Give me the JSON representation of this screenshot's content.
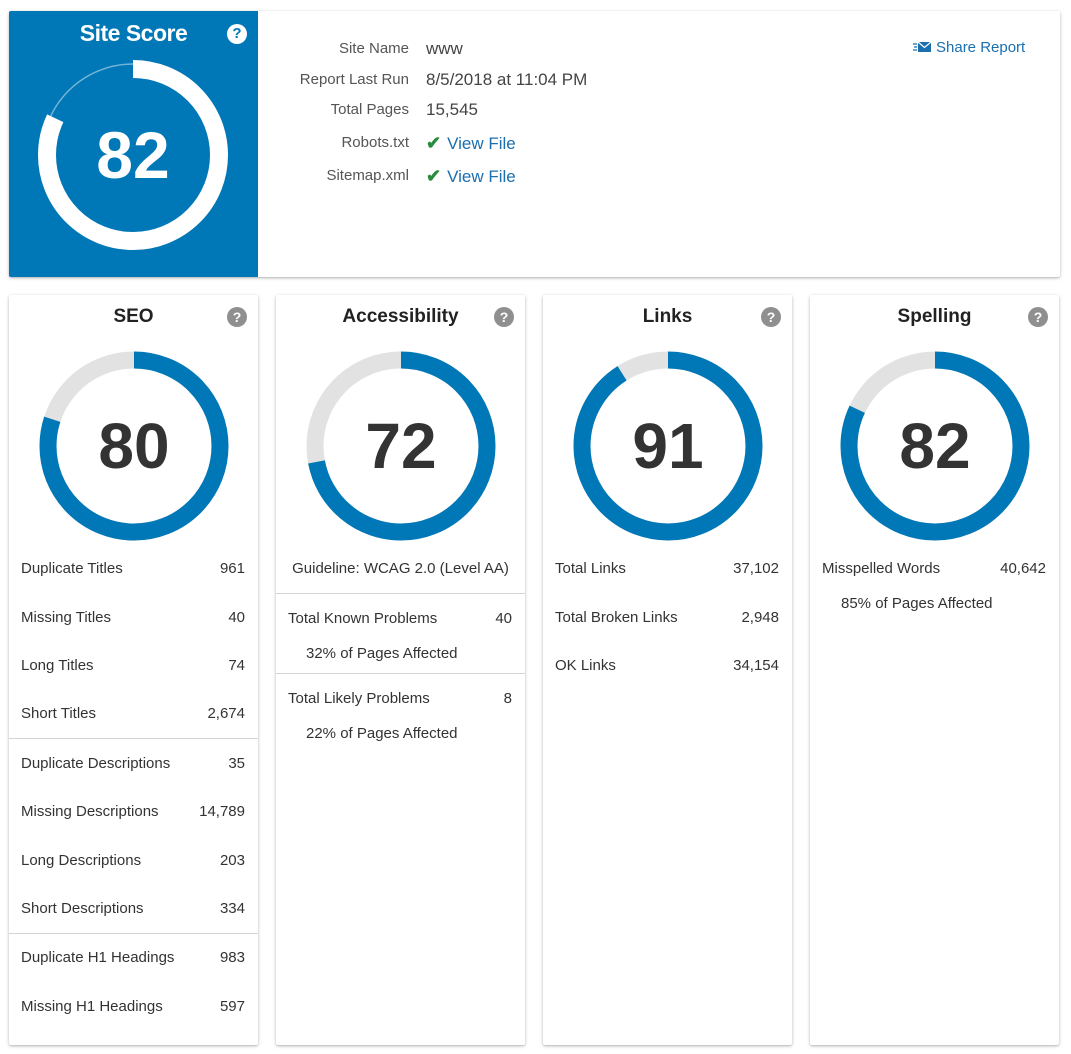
{
  "site_score": {
    "title": "Site Score",
    "help": "?",
    "value": "82",
    "score_fraction": 0.82
  },
  "info": {
    "site_name_label": "Site Name",
    "site_name_value": "www",
    "report_last_run_label": "Report Last Run",
    "report_last_run_value": "8/5/2018 at 11:04 PM",
    "total_pages_label": "Total Pages",
    "total_pages_value": "15,545",
    "robots_label": "Robots.txt",
    "robots_link": "View File",
    "sitemap_label": "Sitemap.xml",
    "sitemap_link": "View File",
    "check_glyph": "✔"
  },
  "share": {
    "label": "Share Report",
    "icon": "envelope-icon"
  },
  "colors": {
    "brand_blue": "#0077b6",
    "link_blue": "#1a6fae",
    "check_green": "#2a8a3e",
    "ring_gray": "#e2e2e2"
  },
  "cards": {
    "seo": {
      "title": "SEO",
      "help": "?",
      "score": "80",
      "score_fraction": 0.8,
      "rows": [
        {
          "label": "Duplicate Titles",
          "value": "961"
        },
        {
          "label": "Missing Titles",
          "value": "40"
        },
        {
          "label": "Long Titles",
          "value": "74"
        },
        {
          "label": "Short Titles",
          "value": "2,674"
        },
        {
          "label": "Duplicate Descriptions",
          "value": "35"
        },
        {
          "label": "Missing Descriptions",
          "value": "14,789"
        },
        {
          "label": "Long Descriptions",
          "value": "203"
        },
        {
          "label": "Short Descriptions",
          "value": "334"
        },
        {
          "label": "Duplicate H1 Headings",
          "value": "983"
        },
        {
          "label": "Missing H1 Headings",
          "value": "597"
        }
      ]
    },
    "accessibility": {
      "title": "Accessibility",
      "help": "?",
      "score": "72",
      "score_fraction": 0.72,
      "guideline": "Guideline: WCAG 2.0 (Level AA)",
      "known_label": "Total Known Problems",
      "known_value": "40",
      "known_affected": "32% of Pages Affected",
      "likely_label": "Total Likely Problems",
      "likely_value": "8",
      "likely_affected": "22% of Pages Affected"
    },
    "links": {
      "title": "Links",
      "help": "?",
      "score": "91",
      "score_fraction": 0.91,
      "rows": [
        {
          "label": "Total Links",
          "value": "37,102"
        },
        {
          "label": "Total Broken Links",
          "value": "2,948"
        },
        {
          "label": "OK Links",
          "value": "34,154"
        }
      ]
    },
    "spelling": {
      "title": "Spelling",
      "help": "?",
      "score": "82",
      "score_fraction": 0.82,
      "misspelled_label": "Misspelled Words",
      "misspelled_value": "40,642",
      "affected": "85% of Pages Affected"
    }
  }
}
